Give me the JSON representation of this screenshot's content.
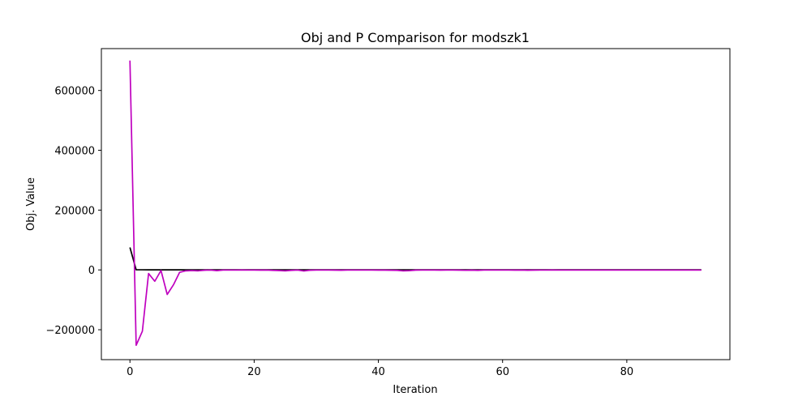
{
  "chart_data": {
    "type": "line",
    "title": "Obj and P Comparison for modszk1",
    "xlabel": "Iteration",
    "ylabel": "Obj. Value",
    "xlim": [
      -4.6,
      96.6
    ],
    "ylim": [
      -300000,
      740000
    ],
    "xticks": [
      0,
      20,
      40,
      60,
      80
    ],
    "xtick_labels": [
      "0",
      "20",
      "40",
      "60",
      "80"
    ],
    "yticks": [
      -200000,
      0,
      200000,
      400000,
      600000
    ],
    "ytick_labels": [
      "−200000",
      "0",
      "200000",
      "400000",
      "600000"
    ],
    "grid": false,
    "series": [
      {
        "color": "#000000",
        "x": [
          0,
          1,
          2,
          3,
          4,
          5,
          6,
          7,
          8,
          9,
          10,
          11,
          12,
          13,
          14,
          15,
          16,
          17,
          18,
          19,
          20,
          21,
          22,
          23,
          24,
          25,
          26,
          27,
          28,
          29,
          30,
          31,
          32,
          33,
          34,
          35,
          36,
          37,
          38,
          39,
          40,
          41,
          42,
          43,
          44,
          45,
          46,
          47,
          48,
          49,
          50,
          51,
          52,
          53,
          54,
          55,
          56,
          57,
          58,
          59,
          60,
          61,
          62,
          63,
          64,
          65,
          66,
          67,
          68,
          69,
          70,
          71,
          72,
          73,
          74,
          75,
          76,
          77,
          78,
          79,
          80,
          81,
          82,
          83,
          84,
          85,
          86,
          87,
          88,
          89,
          90,
          91,
          92
        ],
        "y": [
          75000,
          500,
          400,
          350,
          300,
          300,
          300,
          300,
          300,
          300,
          300,
          300,
          300,
          300,
          300,
          300,
          300,
          300,
          300,
          300,
          300,
          300,
          300,
          300,
          300,
          300,
          300,
          300,
          300,
          300,
          300,
          300,
          300,
          300,
          300,
          300,
          300,
          300,
          300,
          300,
          300,
          300,
          300,
          300,
          300,
          300,
          300,
          300,
          300,
          300,
          300,
          300,
          300,
          300,
          300,
          300,
          300,
          300,
          300,
          300,
          300,
          300,
          300,
          300,
          300,
          300,
          300,
          300,
          300,
          300,
          300,
          300,
          300,
          300,
          300,
          300,
          300,
          300,
          300,
          300,
          300,
          300,
          300,
          300,
          300,
          300,
          300,
          300,
          300,
          300,
          300,
          300,
          300
        ]
      },
      {
        "color": "#bf00bf",
        "x": [
          0,
          1,
          2,
          3,
          4,
          5,
          6,
          7,
          8,
          9,
          10,
          11,
          12,
          13,
          14,
          15,
          16,
          17,
          18,
          19,
          20,
          21,
          22,
          23,
          24,
          25,
          26,
          27,
          28,
          29,
          30,
          31,
          32,
          33,
          34,
          35,
          36,
          37,
          38,
          39,
          40,
          41,
          42,
          43,
          44,
          45,
          46,
          47,
          48,
          49,
          50,
          51,
          52,
          53,
          54,
          55,
          56,
          57,
          58,
          59,
          60,
          61,
          62,
          63,
          64,
          65,
          66,
          67,
          68,
          69,
          70,
          71,
          72,
          73,
          74,
          75,
          76,
          77,
          78,
          79,
          80,
          81,
          82,
          83,
          84,
          85,
          86,
          87,
          88,
          89,
          90,
          91,
          92
        ],
        "y": [
          700000,
          -252000,
          -205000,
          -12000,
          -38000,
          -2000,
          -82000,
          -50000,
          -8000,
          -3000,
          -2000,
          -3000,
          -1000,
          -500,
          -2500,
          -500,
          -500,
          -500,
          -300,
          -500,
          -500,
          -800,
          -500,
          -1500,
          -2000,
          -3000,
          -1500,
          -500,
          -3500,
          -1000,
          -500,
          -500,
          -500,
          -800,
          -1000,
          -500,
          -500,
          -500,
          -500,
          -500,
          -800,
          -800,
          -1000,
          -1500,
          -3000,
          -2500,
          -800,
          -500,
          -500,
          -500,
          -800,
          -500,
          -500,
          -800,
          -1200,
          -800,
          -1500,
          -500,
          -500,
          -500,
          -500,
          -500,
          -800,
          -500,
          -1000,
          -800,
          -500,
          -500,
          -300,
          -500,
          -500,
          -500,
          -500,
          -500,
          -500,
          -500,
          -500,
          -500,
          -500,
          -500,
          -500,
          -500,
          -500,
          -500,
          -500,
          -500,
          -500,
          -500,
          -500,
          -500,
          -500,
          -500,
          -500
        ]
      }
    ]
  }
}
